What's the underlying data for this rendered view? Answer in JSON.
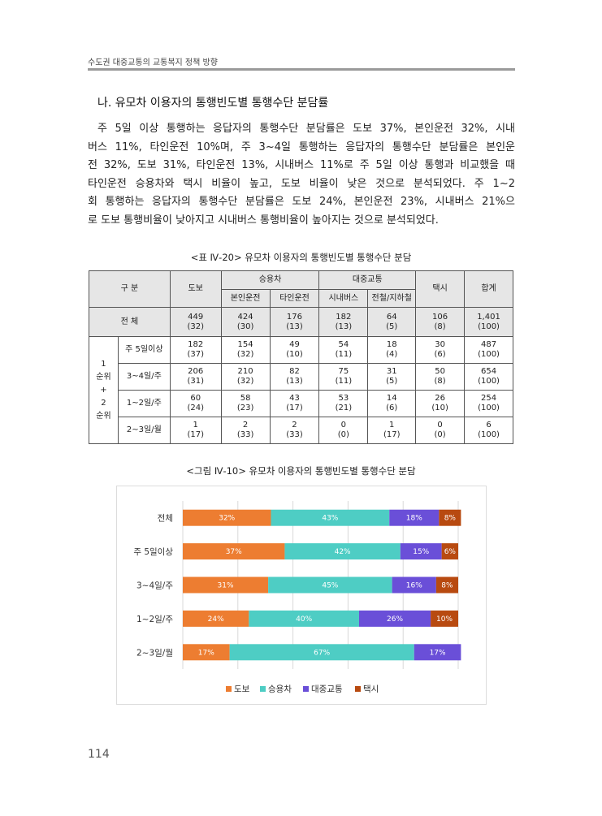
{
  "header": {
    "title": "수도권 대중교통의 교통복지 정책 방향"
  },
  "section": {
    "title": "나. 유모차 이용자의 통행빈도별 통행수단 분담률"
  },
  "paragraph": {
    "lines": [
      "주 5일 이상 통행하는 응답자의 통행수단 분담률은 도보 37%, 본인운전 32%, 시내",
      "버스 11%, 타인운전 10%며, 주 3~4일 통행하는 응답자의 통행수단 분담률은 본인운",
      "전 32%, 도보 31%, 타인운전 13%, 시내버스 11%로 주 5일 이상 통행과 비교했을 때",
      "타인운전 승용차와 택시 비율이 높고, 도보 비율이 낮은 것으로 분석되었다. 주 1~2",
      "회 통행하는 응답자의 통행수단 분담률은 도보 24%, 본인운전 23%, 시내버스 21%으",
      "로 도보 통행비율이 낮아지고 시내버스 통행비율이 높아지는 것으로 분석되었다."
    ]
  },
  "table": {
    "caption": "<표 Ⅳ-20> 유모차 이용자의 통행빈도별 통행수단 분담",
    "header": {
      "gubun": "구 분",
      "walk": "도보",
      "car": "승용차",
      "self_drive": "본인운전",
      "other_drive": "타인운전",
      "transit": "대중교통",
      "bus": "시내버스",
      "rail": "전철/지하철",
      "taxi": "택시",
      "total": "합계"
    },
    "total_row": {
      "label": "전 체",
      "counts": [
        "449",
        "424",
        "176",
        "182",
        "64",
        "106",
        "1,401"
      ],
      "shares": [
        "(32)",
        "(30)",
        "(13)",
        "(13)",
        "(5)",
        "(8)",
        "(100)"
      ]
    },
    "group_label": [
      "1",
      "순위",
      "+",
      "2",
      "순위"
    ],
    "rows": [
      {
        "label": "주 5일이상",
        "counts": [
          "182",
          "154",
          "49",
          "54",
          "18",
          "30",
          "487"
        ],
        "shares": [
          "(37)",
          "(32)",
          "(10)",
          "(11)",
          "(4)",
          "(6)",
          "(100)"
        ]
      },
      {
        "label": "3~4일/주",
        "counts": [
          "206",
          "210",
          "82",
          "75",
          "31",
          "50",
          "654"
        ],
        "shares": [
          "(31)",
          "(32)",
          "(13)",
          "(11)",
          "(5)",
          "(8)",
          "(100)"
        ]
      },
      {
        "label": "1~2일/주",
        "counts": [
          "60",
          "58",
          "43",
          "53",
          "14",
          "26",
          "254"
        ],
        "shares": [
          "(24)",
          "(23)",
          "(17)",
          "(21)",
          "(6)",
          "(10)",
          "(100)"
        ]
      },
      {
        "label": "2~3일/월",
        "counts": [
          "1",
          "2",
          "2",
          "0",
          "1",
          "0",
          "6"
        ],
        "shares": [
          "(17)",
          "(33)",
          "(33)",
          "(0)",
          "(17)",
          "(0)",
          "(100)"
        ]
      }
    ]
  },
  "figure": {
    "caption": "<그림 Ⅳ-10> 유모차 이용자의 통행빈도별 통행수단 분담"
  },
  "chart_data": {
    "type": "bar",
    "orientation": "horizontal",
    "stacked": true,
    "title": "",
    "categories": [
      "전체",
      "주 5일이상",
      "3~4일/주",
      "1~2일/주",
      "2~3일/월"
    ],
    "series": [
      {
        "name": "도보",
        "values": [
          32,
          37,
          31,
          24,
          17
        ],
        "labels": [
          "32%",
          "37%",
          "31%",
          "24%",
          "17%"
        ],
        "color": "#ed7d31"
      },
      {
        "name": "승용차",
        "values": [
          43,
          42,
          45,
          40,
          67
        ],
        "labels": [
          "43%",
          "42%",
          "45%",
          "40%",
          "67%"
        ],
        "color": "#4ecdc4"
      },
      {
        "name": "대중교통",
        "values": [
          18,
          15,
          16,
          26,
          17
        ],
        "labels": [
          "18%",
          "15%",
          "16%",
          "26%",
          "17%"
        ],
        "color": "#6a4fd8"
      },
      {
        "name": "택시",
        "values": [
          8,
          6,
          8,
          10,
          0
        ],
        "labels": [
          "8%",
          "6%",
          "8%",
          "10%",
          "0"
        ],
        "color": "#b84a10"
      }
    ],
    "xlim": [
      0,
      100
    ],
    "grid": true,
    "legend_position": "bottom"
  },
  "page": {
    "number": "114"
  }
}
